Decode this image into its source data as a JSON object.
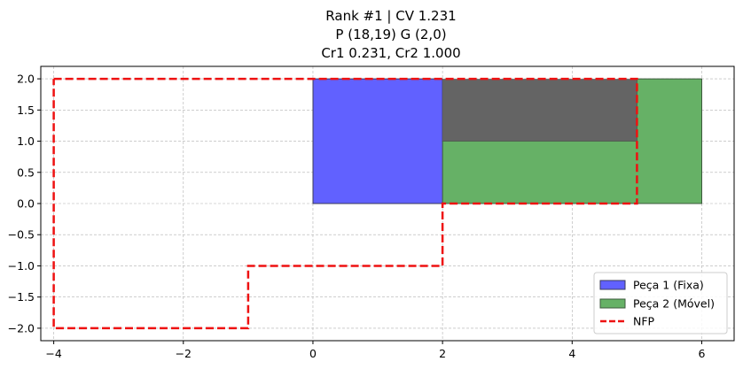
{
  "chart_data": {
    "type": "line",
    "title_lines": [
      "Rank #1 | CV 1.231",
      "P (18,19) G (2,0)",
      "Cr1 0.231, Cr2 1.000"
    ],
    "xlabel": "",
    "ylabel": "",
    "xlim": [
      -4.2,
      6.5
    ],
    "ylim": [
      -2.2,
      2.2
    ],
    "xticks": [
      -4,
      -2,
      0,
      2,
      4,
      6
    ],
    "xtick_labels": [
      "−4",
      "−2",
      "0",
      "2",
      "4",
      "6"
    ],
    "yticks": [
      2.0,
      1.5,
      1.0,
      0.5,
      0.0,
      -0.5,
      -1.0,
      -1.5,
      -2.0
    ],
    "ytick_labels": [
      "2.0",
      "1.5",
      "1.0",
      "0.5",
      "0.0",
      "−0.5",
      "−1.0",
      "−1.5",
      "−2.0"
    ],
    "grid": true,
    "legend_position": "lower-right",
    "series": [
      {
        "name": "Peça 1 (Fixa)",
        "kind": "polygon",
        "fill": "#6161ff",
        "stroke": "#3a3a5a",
        "points": [
          [
            0,
            0
          ],
          [
            5,
            0
          ],
          [
            5,
            1
          ],
          [
            2,
            1
          ],
          [
            2,
            2
          ],
          [
            0,
            2
          ]
        ]
      },
      {
        "name": "Peça 2 (Móvel)",
        "kind": "polygon",
        "fill": "#66b166",
        "stroke": "#3d5a3d",
        "points": [
          [
            2,
            0
          ],
          [
            6,
            0
          ],
          [
            6,
            2
          ],
          [
            5,
            2
          ],
          [
            5,
            1
          ],
          [
            2,
            1
          ]
        ]
      },
      {
        "name": "NFP",
        "kind": "dashed-line",
        "stroke": "#ee1111",
        "points": [
          [
            -4,
            2
          ],
          [
            5,
            2
          ],
          [
            5,
            0
          ],
          [
            2,
            0
          ],
          [
            2,
            -1
          ],
          [
            -1,
            -1
          ],
          [
            -1,
            -2
          ],
          [
            -4,
            -2
          ],
          [
            -4,
            2
          ]
        ]
      }
    ],
    "overlap_region": {
      "fill": "#646464",
      "points": [
        [
          5,
          0
        ],
        [
          5,
          2
        ],
        [
          2,
          2
        ],
        [
          2,
          1
        ],
        [
          5,
          1
        ]
      ]
    }
  }
}
